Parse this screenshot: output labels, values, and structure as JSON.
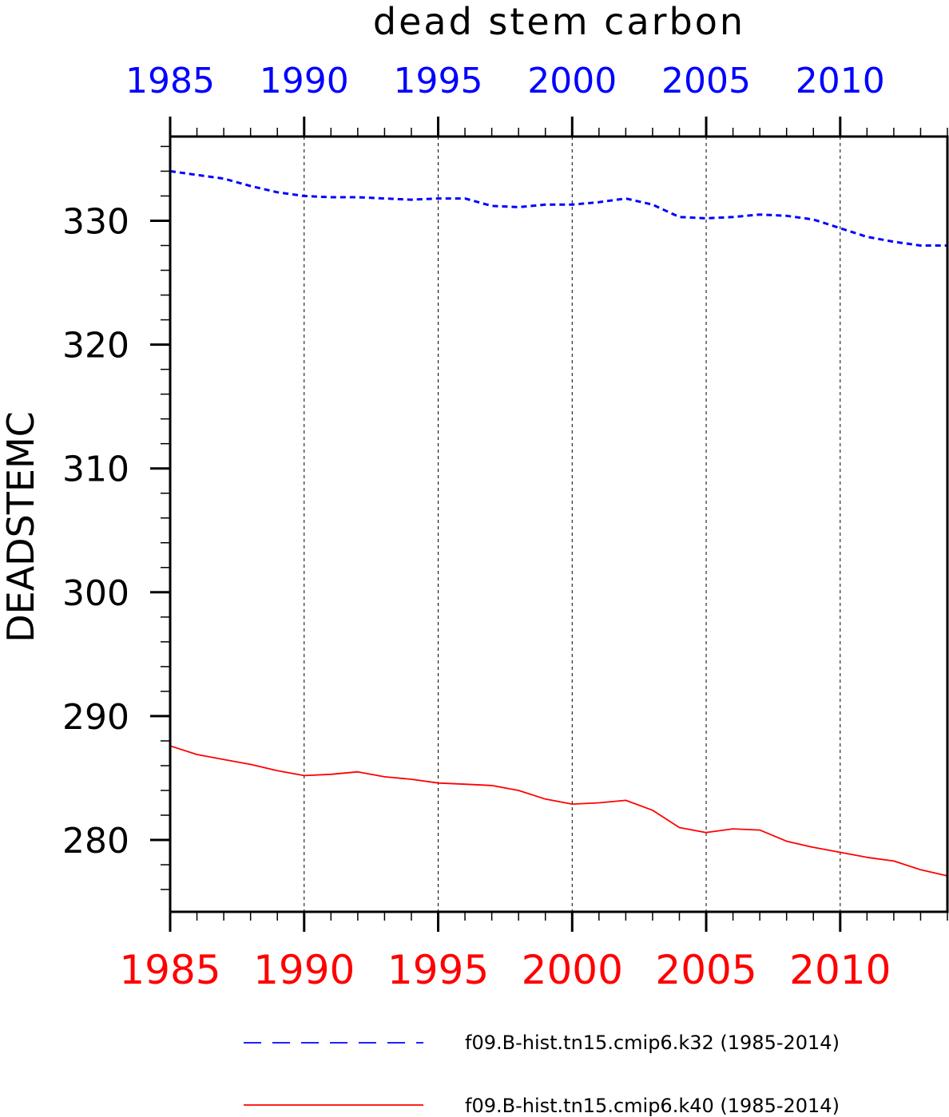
{
  "chart_data": {
    "type": "line",
    "title": "dead stem carbon",
    "ylabel": "DEADSTEMC",
    "xlabel": "",
    "xlim": [
      1985,
      2014
    ],
    "ylim": [
      274.2,
      336.8
    ],
    "grid": "vertical-dashed",
    "x_major_ticks": [
      1985,
      1990,
      1995,
      2000,
      2005,
      2010
    ],
    "x_tick_labels": [
      "1985",
      "1990",
      "1995",
      "2000",
      "2005",
      "2010"
    ],
    "y_major_ticks": [
      280,
      290,
      300,
      310,
      320,
      330
    ],
    "y_tick_labels": [
      "280",
      "290",
      "300",
      "310",
      "320",
      "330"
    ],
    "legend_position": "bottom",
    "x": [
      1985,
      1986,
      1987,
      1988,
      1989,
      1990,
      1991,
      1992,
      1993,
      1994,
      1995,
      1996,
      1997,
      1998,
      1999,
      2000,
      2001,
      2002,
      2003,
      2004,
      2005,
      2006,
      2007,
      2008,
      2009,
      2010,
      2011,
      2012,
      2013,
      2014
    ],
    "series": [
      {
        "name": "f09.B-hist.tn15.cmip6.k32 (1985-2014)",
        "color": "#0000ff",
        "style": "dashed",
        "axis": "top",
        "values": [
          334.0,
          333.7,
          333.4,
          332.8,
          332.3,
          332.0,
          331.9,
          331.9,
          331.8,
          331.7,
          331.8,
          331.8,
          331.2,
          331.1,
          331.3,
          331.3,
          331.5,
          331.8,
          331.3,
          330.3,
          330.2,
          330.3,
          330.5,
          330.4,
          330.1,
          329.4,
          328.7,
          328.3,
          328.0,
          328.0
        ]
      },
      {
        "name": "f09.B-hist.tn15.cmip6.k40 (1985-2014)",
        "color": "#ff0000",
        "style": "solid",
        "axis": "bottom",
        "values": [
          287.6,
          286.9,
          286.5,
          286.1,
          285.6,
          285.2,
          285.3,
          285.5,
          285.1,
          284.9,
          284.6,
          284.5,
          284.4,
          284.0,
          283.3,
          282.9,
          283.0,
          283.2,
          282.4,
          281.0,
          280.6,
          280.9,
          280.8,
          279.9,
          279.4,
          279.0,
          278.6,
          278.3,
          277.6,
          277.1
        ]
      }
    ]
  }
}
